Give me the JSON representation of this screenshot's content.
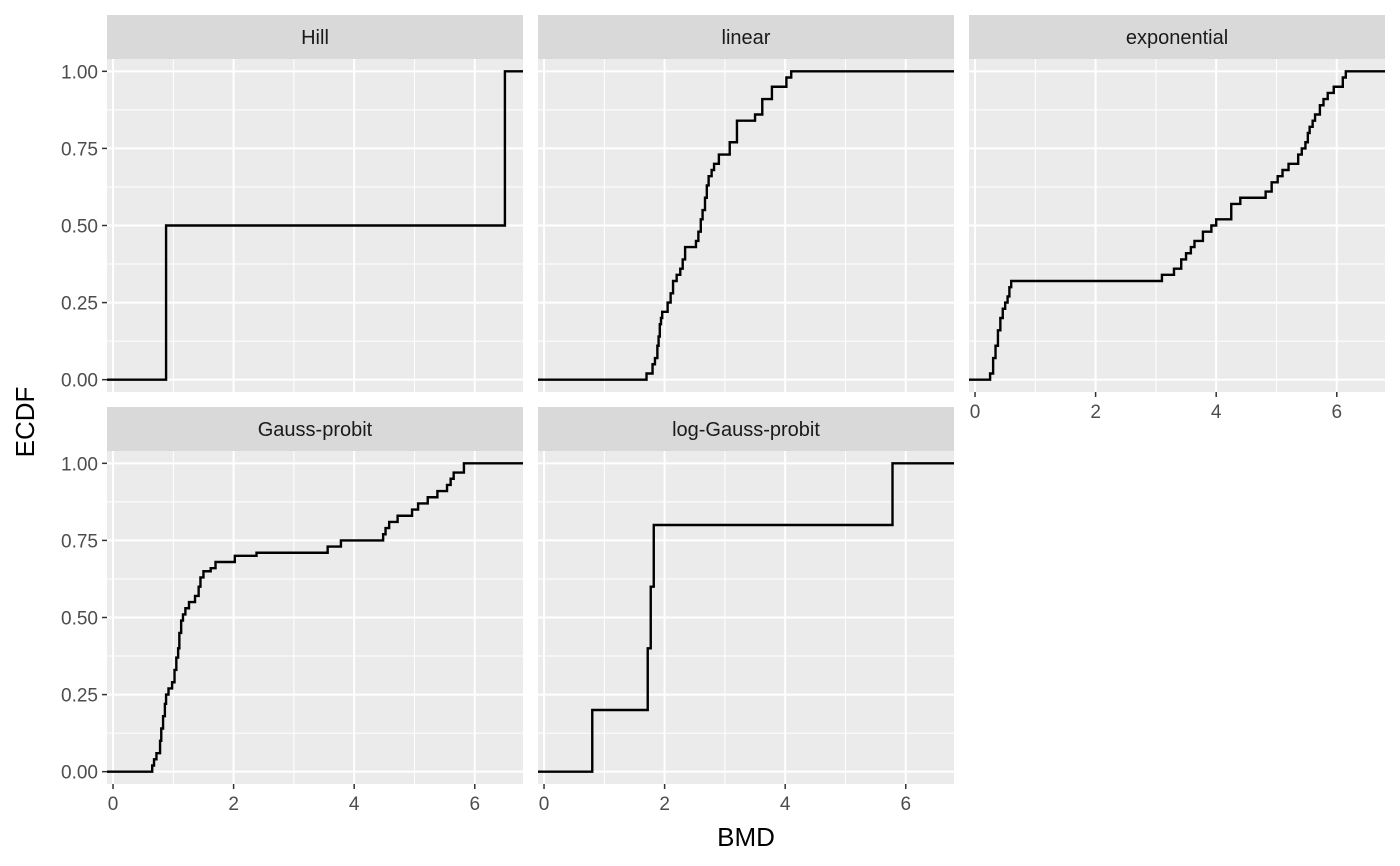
{
  "chart_data": {
    "type": "line",
    "subtype": "ecdf-step",
    "xlabel": "BMD",
    "ylabel": "ECDF",
    "xlim": [
      -0.1,
      6.8
    ],
    "ylim": [
      -0.04,
      1.04
    ],
    "x_ticks": [
      0,
      2,
      4,
      6
    ],
    "y_ticks": [
      0,
      0.25,
      0.5,
      0.75,
      1
    ],
    "y_tick_labels": [
      "0.00",
      "0.25",
      "0.50",
      "0.75",
      "1.00"
    ],
    "grid": true,
    "line_color": "#000000",
    "panel_background": "#EBEBEB",
    "strip_background": "#D9D9D9",
    "panels": [
      {
        "name": "Hill",
        "points": [
          [
            -0.1,
            0
          ],
          [
            0.88,
            0
          ],
          [
            0.88,
            0.5
          ],
          [
            6.5,
            0.5
          ],
          [
            6.5,
            1
          ],
          [
            6.8,
            1
          ]
        ]
      },
      {
        "name": "linear",
        "points": [
          [
            -0.1,
            0
          ],
          [
            1.7,
            0
          ],
          [
            1.7,
            0.02
          ],
          [
            1.8,
            0.02
          ],
          [
            1.8,
            0.05
          ],
          [
            1.84,
            0.05
          ],
          [
            1.84,
            0.07
          ],
          [
            1.88,
            0.07
          ],
          [
            1.88,
            0.11
          ],
          [
            1.9,
            0.11
          ],
          [
            1.9,
            0.14
          ],
          [
            1.92,
            0.14
          ],
          [
            1.92,
            0.18
          ],
          [
            1.94,
            0.18
          ],
          [
            1.94,
            0.2
          ],
          [
            1.96,
            0.2
          ],
          [
            1.96,
            0.22
          ],
          [
            2.05,
            0.22
          ],
          [
            2.05,
            0.25
          ],
          [
            2.1,
            0.25
          ],
          [
            2.1,
            0.28
          ],
          [
            2.14,
            0.28
          ],
          [
            2.14,
            0.32
          ],
          [
            2.2,
            0.32
          ],
          [
            2.2,
            0.34
          ],
          [
            2.26,
            0.34
          ],
          [
            2.26,
            0.36
          ],
          [
            2.3,
            0.36
          ],
          [
            2.3,
            0.39
          ],
          [
            2.34,
            0.39
          ],
          [
            2.34,
            0.43
          ],
          [
            2.52,
            0.43
          ],
          [
            2.52,
            0.45
          ],
          [
            2.56,
            0.45
          ],
          [
            2.56,
            0.48
          ],
          [
            2.6,
            0.48
          ],
          [
            2.6,
            0.52
          ],
          [
            2.63,
            0.52
          ],
          [
            2.63,
            0.55
          ],
          [
            2.67,
            0.55
          ],
          [
            2.67,
            0.59
          ],
          [
            2.7,
            0.59
          ],
          [
            2.7,
            0.63
          ],
          [
            2.73,
            0.63
          ],
          [
            2.73,
            0.66
          ],
          [
            2.78,
            0.66
          ],
          [
            2.78,
            0.68
          ],
          [
            2.82,
            0.68
          ],
          [
            2.82,
            0.7
          ],
          [
            2.9,
            0.7
          ],
          [
            2.9,
            0.73
          ],
          [
            3.08,
            0.73
          ],
          [
            3.08,
            0.77
          ],
          [
            3.2,
            0.77
          ],
          [
            3.2,
            0.84
          ],
          [
            3.5,
            0.84
          ],
          [
            3.5,
            0.86
          ],
          [
            3.62,
            0.86
          ],
          [
            3.62,
            0.91
          ],
          [
            3.78,
            0.91
          ],
          [
            3.78,
            0.95
          ],
          [
            4.02,
            0.95
          ],
          [
            4.02,
            0.98
          ],
          [
            4.1,
            0.98
          ],
          [
            4.1,
            1
          ],
          [
            6.8,
            1
          ]
        ]
      },
      {
        "name": "exponential",
        "points": [
          [
            -0.1,
            0
          ],
          [
            0.25,
            0
          ],
          [
            0.25,
            0.02
          ],
          [
            0.3,
            0.02
          ],
          [
            0.3,
            0.07
          ],
          [
            0.34,
            0.07
          ],
          [
            0.34,
            0.11
          ],
          [
            0.38,
            0.11
          ],
          [
            0.38,
            0.16
          ],
          [
            0.42,
            0.16
          ],
          [
            0.42,
            0.2
          ],
          [
            0.46,
            0.2
          ],
          [
            0.46,
            0.23
          ],
          [
            0.5,
            0.23
          ],
          [
            0.5,
            0.25
          ],
          [
            0.54,
            0.25
          ],
          [
            0.54,
            0.27
          ],
          [
            0.57,
            0.27
          ],
          [
            0.57,
            0.3
          ],
          [
            0.6,
            0.3
          ],
          [
            0.6,
            0.32
          ],
          [
            3.1,
            0.32
          ],
          [
            3.1,
            0.34
          ],
          [
            3.3,
            0.34
          ],
          [
            3.3,
            0.36
          ],
          [
            3.42,
            0.36
          ],
          [
            3.42,
            0.39
          ],
          [
            3.5,
            0.39
          ],
          [
            3.5,
            0.41
          ],
          [
            3.58,
            0.41
          ],
          [
            3.58,
            0.43
          ],
          [
            3.64,
            0.43
          ],
          [
            3.64,
            0.45
          ],
          [
            3.78,
            0.45
          ],
          [
            3.78,
            0.48
          ],
          [
            3.92,
            0.48
          ],
          [
            3.92,
            0.5
          ],
          [
            4,
            0.5
          ],
          [
            4,
            0.52
          ],
          [
            4.25,
            0.52
          ],
          [
            4.25,
            0.57
          ],
          [
            4.4,
            0.57
          ],
          [
            4.4,
            0.59
          ],
          [
            4.82,
            0.59
          ],
          [
            4.82,
            0.61
          ],
          [
            4.92,
            0.61
          ],
          [
            4.92,
            0.64
          ],
          [
            5.02,
            0.64
          ],
          [
            5.02,
            0.66
          ],
          [
            5.1,
            0.66
          ],
          [
            5.1,
            0.68
          ],
          [
            5.2,
            0.68
          ],
          [
            5.2,
            0.7
          ],
          [
            5.36,
            0.7
          ],
          [
            5.36,
            0.73
          ],
          [
            5.42,
            0.73
          ],
          [
            5.42,
            0.75
          ],
          [
            5.48,
            0.75
          ],
          [
            5.48,
            0.77
          ],
          [
            5.52,
            0.77
          ],
          [
            5.52,
            0.8
          ],
          [
            5.55,
            0.8
          ],
          [
            5.55,
            0.82
          ],
          [
            5.6,
            0.82
          ],
          [
            5.6,
            0.84
          ],
          [
            5.64,
            0.84
          ],
          [
            5.64,
            0.86
          ],
          [
            5.72,
            0.86
          ],
          [
            5.72,
            0.89
          ],
          [
            5.78,
            0.89
          ],
          [
            5.78,
            0.91
          ],
          [
            5.85,
            0.91
          ],
          [
            5.85,
            0.93
          ],
          [
            5.95,
            0.93
          ],
          [
            5.95,
            0.95
          ],
          [
            6.1,
            0.95
          ],
          [
            6.1,
            0.98
          ],
          [
            6.15,
            0.98
          ],
          [
            6.15,
            1
          ],
          [
            6.8,
            1
          ]
        ]
      },
      {
        "name": "Gauss-probit",
        "points": [
          [
            -0.1,
            0
          ],
          [
            0.65,
            0
          ],
          [
            0.65,
            0.02
          ],
          [
            0.68,
            0.02
          ],
          [
            0.68,
            0.04
          ],
          [
            0.72,
            0.04
          ],
          [
            0.72,
            0.06
          ],
          [
            0.78,
            0.06
          ],
          [
            0.78,
            0.1
          ],
          [
            0.8,
            0.1
          ],
          [
            0.8,
            0.14
          ],
          [
            0.83,
            0.14
          ],
          [
            0.83,
            0.18
          ],
          [
            0.86,
            0.18
          ],
          [
            0.86,
            0.22
          ],
          [
            0.88,
            0.22
          ],
          [
            0.88,
            0.25
          ],
          [
            0.92,
            0.25
          ],
          [
            0.92,
            0.27
          ],
          [
            0.98,
            0.27
          ],
          [
            0.98,
            0.29
          ],
          [
            1.02,
            0.29
          ],
          [
            1.02,
            0.33
          ],
          [
            1.05,
            0.33
          ],
          [
            1.05,
            0.37
          ],
          [
            1.08,
            0.37
          ],
          [
            1.08,
            0.4
          ],
          [
            1.1,
            0.4
          ],
          [
            1.1,
            0.45
          ],
          [
            1.13,
            0.45
          ],
          [
            1.13,
            0.49
          ],
          [
            1.16,
            0.49
          ],
          [
            1.16,
            0.51
          ],
          [
            1.2,
            0.51
          ],
          [
            1.2,
            0.53
          ],
          [
            1.26,
            0.53
          ],
          [
            1.26,
            0.55
          ],
          [
            1.36,
            0.55
          ],
          [
            1.36,
            0.57
          ],
          [
            1.42,
            0.57
          ],
          [
            1.42,
            0.6
          ],
          [
            1.45,
            0.6
          ],
          [
            1.45,
            0.63
          ],
          [
            1.5,
            0.63
          ],
          [
            1.5,
            0.65
          ],
          [
            1.62,
            0.65
          ],
          [
            1.62,
            0.66
          ],
          [
            1.7,
            0.66
          ],
          [
            1.7,
            0.68
          ],
          [
            2.02,
            0.68
          ],
          [
            2.02,
            0.7
          ],
          [
            2.38,
            0.7
          ],
          [
            2.38,
            0.71
          ],
          [
            3.56,
            0.71
          ],
          [
            3.56,
            0.73
          ],
          [
            3.78,
            0.73
          ],
          [
            3.78,
            0.75
          ],
          [
            4.48,
            0.75
          ],
          [
            4.48,
            0.77
          ],
          [
            4.52,
            0.77
          ],
          [
            4.52,
            0.79
          ],
          [
            4.58,
            0.79
          ],
          [
            4.58,
            0.81
          ],
          [
            4.72,
            0.81
          ],
          [
            4.72,
            0.83
          ],
          [
            4.96,
            0.83
          ],
          [
            4.96,
            0.85
          ],
          [
            5.06,
            0.85
          ],
          [
            5.06,
            0.87
          ],
          [
            5.22,
            0.87
          ],
          [
            5.22,
            0.89
          ],
          [
            5.38,
            0.89
          ],
          [
            5.38,
            0.91
          ],
          [
            5.54,
            0.91
          ],
          [
            5.54,
            0.93
          ],
          [
            5.6,
            0.93
          ],
          [
            5.6,
            0.95
          ],
          [
            5.65,
            0.95
          ],
          [
            5.65,
            0.97
          ],
          [
            5.82,
            0.97
          ],
          [
            5.82,
            1
          ],
          [
            6.8,
            1
          ]
        ]
      },
      {
        "name": "log-Gauss-probit",
        "points": [
          [
            -0.1,
            0
          ],
          [
            0.8,
            0
          ],
          [
            0.8,
            0.2
          ],
          [
            1.72,
            0.2
          ],
          [
            1.72,
            0.4
          ],
          [
            1.77,
            0.4
          ],
          [
            1.77,
            0.6
          ],
          [
            1.82,
            0.6
          ],
          [
            1.82,
            0.8
          ],
          [
            5.78,
            0.8
          ],
          [
            5.78,
            1
          ],
          [
            6.8,
            1
          ]
        ]
      }
    ]
  }
}
